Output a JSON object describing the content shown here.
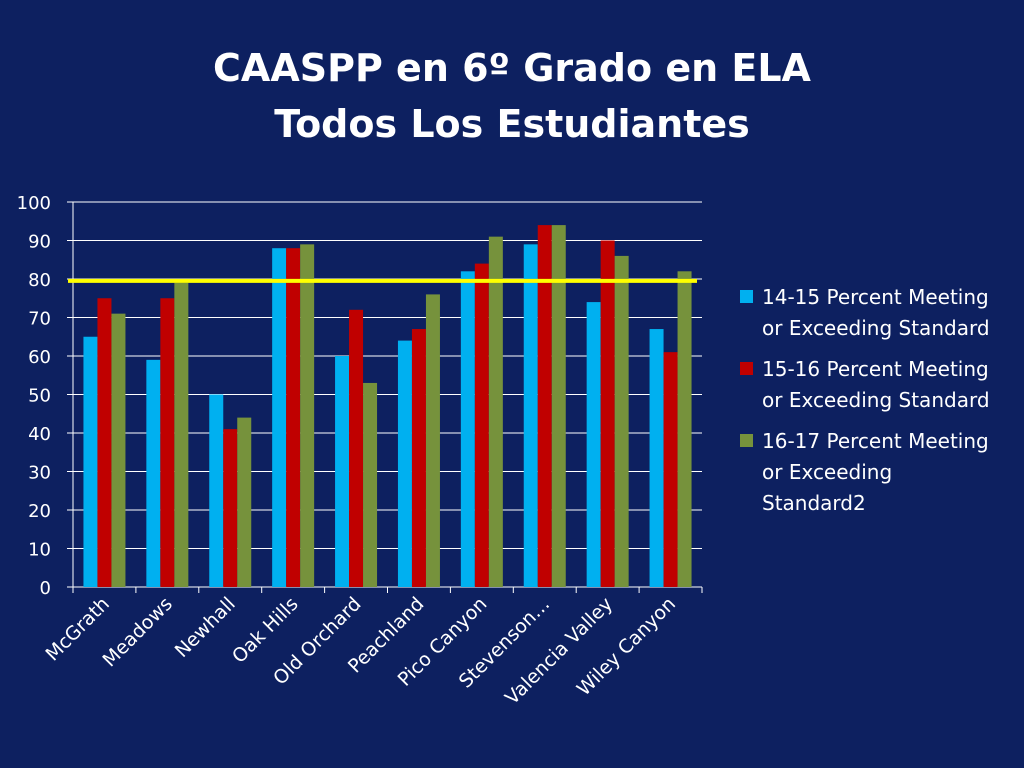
{
  "slide": {
    "title_line1": "CAASPP en 6º Grado en ELA",
    "title_line2": "Todos Los Estudiantes"
  },
  "chart_data": {
    "type": "bar",
    "categories": [
      "McGrath",
      "Meadows",
      "Newhall",
      "Oak Hills",
      "Old Orchard",
      "Peachland",
      "Pico Canyon",
      "Stevenson…",
      "Valencia Valley",
      "Wiley Canyon"
    ],
    "series": [
      {
        "name": "14-15 Percent Meeting or Exceeding Standard",
        "color": "#00b0f0",
        "values": [
          65,
          59,
          50,
          88,
          60,
          64,
          82,
          89,
          74,
          67
        ]
      },
      {
        "name": "15-16 Percent Meeting or Exceeding Standard",
        "color": "#c00000",
        "values": [
          75,
          75,
          41,
          88,
          72,
          67,
          84,
          94,
          90,
          61
        ]
      },
      {
        "name": "16-17 Percent Meeting or Exceeding Standard2",
        "color": "#76923c",
        "values": [
          71,
          79,
          44,
          89,
          53,
          76,
          91,
          94,
          86,
          82
        ]
      }
    ],
    "ylim": [
      0,
      100
    ],
    "yticks": [
      0,
      10,
      20,
      30,
      40,
      50,
      60,
      70,
      80,
      90,
      100
    ],
    "grid": true,
    "reference_line": {
      "value": 79.5,
      "color": "#ffff00"
    },
    "legend_position": "right",
    "axis_color": "#ffffff",
    "grid_color": "#ffffff"
  }
}
